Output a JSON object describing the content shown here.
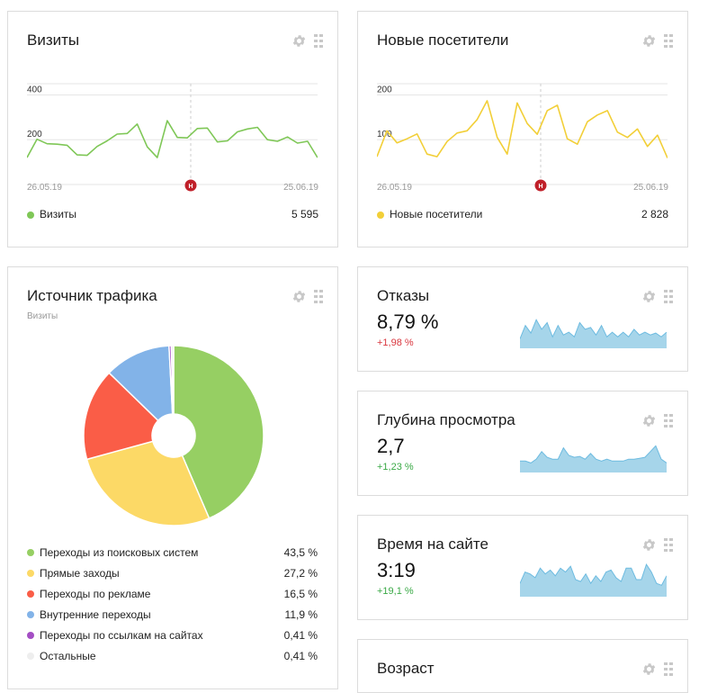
{
  "tool_icons": [
    "gear-icon",
    "drag-handle-icon"
  ],
  "visits": {
    "title": "Визиты",
    "y_ticks": [
      "400",
      "200"
    ],
    "date_start": "26.05.19",
    "date_end": "25.06.19",
    "annotation_marker": "Н",
    "legend_label": "Визиты",
    "total": "5 595",
    "color": "#7fc757",
    "chart_data": {
      "type": "line",
      "y_ticks": [
        200,
        400
      ],
      "ylim": [
        0,
        450
      ],
      "values": [
        120,
        202,
        182,
        180,
        175,
        132,
        130,
        170,
        195,
        225,
        228,
        270,
        168,
        120,
        285,
        210,
        208,
        250,
        252,
        190,
        195,
        235,
        248,
        255,
        200,
        193,
        212,
        185,
        193,
        120
      ]
    }
  },
  "new_visitors": {
    "title": "Новые посетители",
    "y_ticks": [
      "200",
      "100"
    ],
    "date_start": "26.05.19",
    "date_end": "25.06.19",
    "annotation_marker": "Н",
    "legend_label": "Новые посетители",
    "total": "2 828",
    "color": "#f2cf38",
    "chart_data": {
      "type": "line",
      "y_ticks": [
        100,
        200
      ],
      "ylim": [
        0,
        225
      ],
      "values": [
        62,
        120,
        93,
        102,
        113,
        68,
        62,
        96,
        115,
        120,
        145,
        187,
        105,
        68,
        182,
        136,
        112,
        165,
        177,
        102,
        90,
        140,
        155,
        165,
        117,
        105,
        124,
        85,
        110,
        59
      ]
    }
  },
  "traffic": {
    "title": "Источник трафика",
    "subtitle": "Визиты",
    "chart_data": {
      "type": "pie",
      "categories": [
        "Переходы из поисковых систем",
        "Прямые заходы",
        "Переходы по рекламе",
        "Внутренние переходы",
        "Переходы по ссылкам на сайтах",
        "Остальные"
      ],
      "values": [
        43.5,
        27.2,
        16.5,
        11.9,
        0.41,
        0.41
      ],
      "colors": [
        "#96cf63",
        "#fcd966",
        "#fa5d47",
        "#82b3e8",
        "#a44ec4",
        "#eeeeee"
      ]
    },
    "items": [
      {
        "label": "Переходы из поисковых систем",
        "value": "43,5 %",
        "color": "#96cf63"
      },
      {
        "label": "Прямые заходы",
        "value": "27,2 %",
        "color": "#fcd966"
      },
      {
        "label": "Переходы по рекламе",
        "value": "16,5 %",
        "color": "#fa5d47"
      },
      {
        "label": "Внутренние переходы",
        "value": "11,9 %",
        "color": "#82b3e8"
      },
      {
        "label": "Переходы по ссылкам на сайтах",
        "value": "0,41 %",
        "color": "#a44ec4"
      },
      {
        "label": "Остальные",
        "value": "0,41 %",
        "color": "#eeeeee"
      }
    ]
  },
  "bounce": {
    "title": "Отказы",
    "value": "8,79 %",
    "delta": "+1,98 %",
    "delta_color": "#d9363e",
    "spark": [
      10,
      24,
      16,
      30,
      20,
      27,
      12,
      24,
      14,
      17,
      12,
      27,
      20,
      22,
      14,
      24,
      12,
      17,
      12,
      17,
      12,
      20,
      14,
      17,
      14,
      16,
      12,
      17
    ]
  },
  "depth": {
    "title": "Глубина просмотра",
    "value": "2,7",
    "delta": "+1,23 %",
    "delta_color": "#3aa946",
    "spark": [
      12,
      12,
      10,
      14,
      22,
      16,
      14,
      14,
      26,
      18,
      16,
      17,
      14,
      20,
      14,
      12,
      14,
      12,
      12,
      12,
      14,
      14,
      15,
      16,
      22,
      28,
      14,
      10
    ]
  },
  "time": {
    "title": "Время на сайте",
    "value": "3:19",
    "delta": "+19,1 %",
    "delta_color": "#3aa946",
    "spark": [
      14,
      26,
      24,
      20,
      30,
      24,
      28,
      22,
      30,
      26,
      32,
      18,
      16,
      24,
      14,
      22,
      16,
      26,
      28,
      20,
      16,
      30,
      30,
      18,
      18,
      34,
      26,
      14,
      12,
      22
    ]
  },
  "age": {
    "title": "Возраст"
  }
}
